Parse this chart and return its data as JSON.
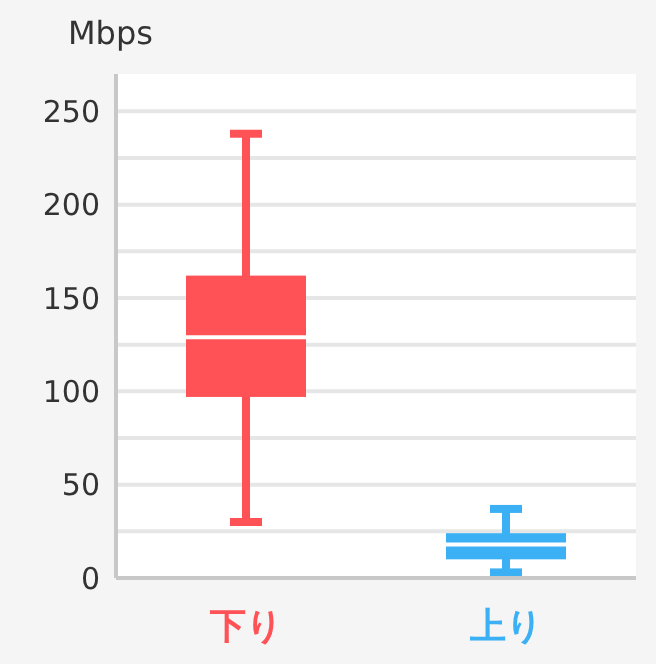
{
  "chart_data": {
    "type": "box",
    "ylabel": "Mbps",
    "categories": [
      "下り",
      "上り"
    ],
    "boxes": [
      {
        "low": 30,
        "q1": 97,
        "median": 129,
        "q3": 162,
        "high": 238
      },
      {
        "low": 3,
        "q1": 10,
        "median": 18,
        "q3": 24,
        "high": 37
      }
    ],
    "colors": [
      "#ff5257",
      "#3bb0f5"
    ],
    "ylim": [
      0,
      270
    ],
    "yticks": [
      0,
      {
        "value": 25,
        "label": null
      },
      50,
      {
        "value": 75,
        "label": null
      },
      100,
      {
        "value": 125,
        "label": null
      },
      150,
      {
        "value": 175,
        "label": null
      },
      200,
      {
        "value": 225,
        "label": null
      },
      250
    ],
    "grid": true
  }
}
